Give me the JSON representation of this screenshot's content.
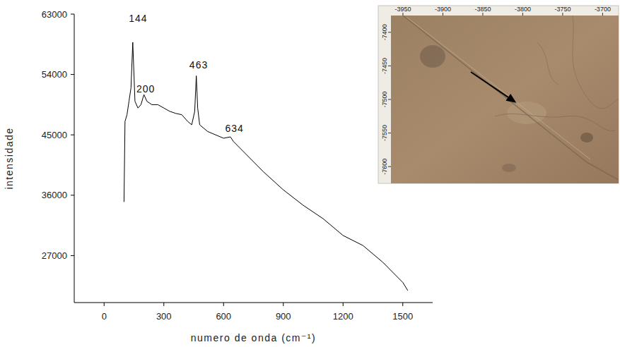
{
  "chart_data": {
    "type": "line",
    "x_label": "numero de onda (cm⁻¹)",
    "y_label": "intensidade",
    "color": "#000000",
    "x": [
      100,
      105,
      115,
      125,
      135,
      144,
      155,
      170,
      185,
      200,
      215,
      240,
      270,
      300,
      330,
      360,
      390,
      420,
      440,
      455,
      463,
      470,
      480,
      500,
      520,
      560,
      600,
      634,
      650,
      700,
      800,
      900,
      1000,
      1100,
      1200,
      1300,
      1400,
      1500,
      1525
    ],
    "values": [
      35000,
      47000,
      48000,
      50000,
      52000,
      58800,
      50000,
      49000,
      49500,
      51000,
      50000,
      49500,
      49500,
      49000,
      48500,
      48200,
      48000,
      47000,
      46500,
      48500,
      53800,
      49000,
      46500,
      46000,
      45500,
      45000,
      44500,
      44700,
      44000,
      42500,
      39500,
      36800,
      34500,
      32500,
      30000,
      28500,
      26000,
      23000,
      21800
    ],
    "xlim": [
      -150,
      1650
    ],
    "xticks": [
      0,
      300,
      600,
      900,
      1200,
      1500
    ],
    "ylim": [
      20000,
      63000
    ],
    "yticks": [
      27000,
      36000,
      45000,
      54000,
      63000
    ],
    "annotations": [
      {
        "text": "144",
        "x": 171,
        "y": 61800
      },
      {
        "text": "200",
        "x": 209,
        "y": 51300
      },
      {
        "text": "463",
        "x": 475,
        "y": 54900
      },
      {
        "text": "634",
        "x": 655,
        "y": 45400
      }
    ],
    "inset": {
      "type": "image",
      "xlim": [
        -3965,
        -3680
      ],
      "ylim": [
        -7375,
        -7625
      ],
      "xticks": [
        -3950,
        -3900,
        -3850,
        -3800,
        -3750,
        -3700
      ],
      "yticks": [
        -7400,
        -7450,
        -7500,
        -7550,
        -7600
      ],
      "arrow": {
        "from": [
          -3865,
          -7459
        ],
        "to": [
          -3808,
          -7505
        ]
      }
    }
  }
}
